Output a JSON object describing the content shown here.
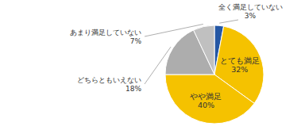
{
  "chart_data": {
    "type": "pie",
    "categories": [
      "全く満足していない",
      "とても満足",
      "やや満足",
      "どちらともいえない",
      "あまり満足していない"
    ],
    "values": [
      3,
      32,
      40,
      18,
      7
    ],
    "value_labels": [
      "3%",
      "32%",
      "40%",
      "18%",
      "7%"
    ],
    "colors": [
      "#2457A4",
      "#F5C200",
      "#F5C200",
      "#ADADAD",
      "#C0C0C0"
    ],
    "data_labels": true
  }
}
